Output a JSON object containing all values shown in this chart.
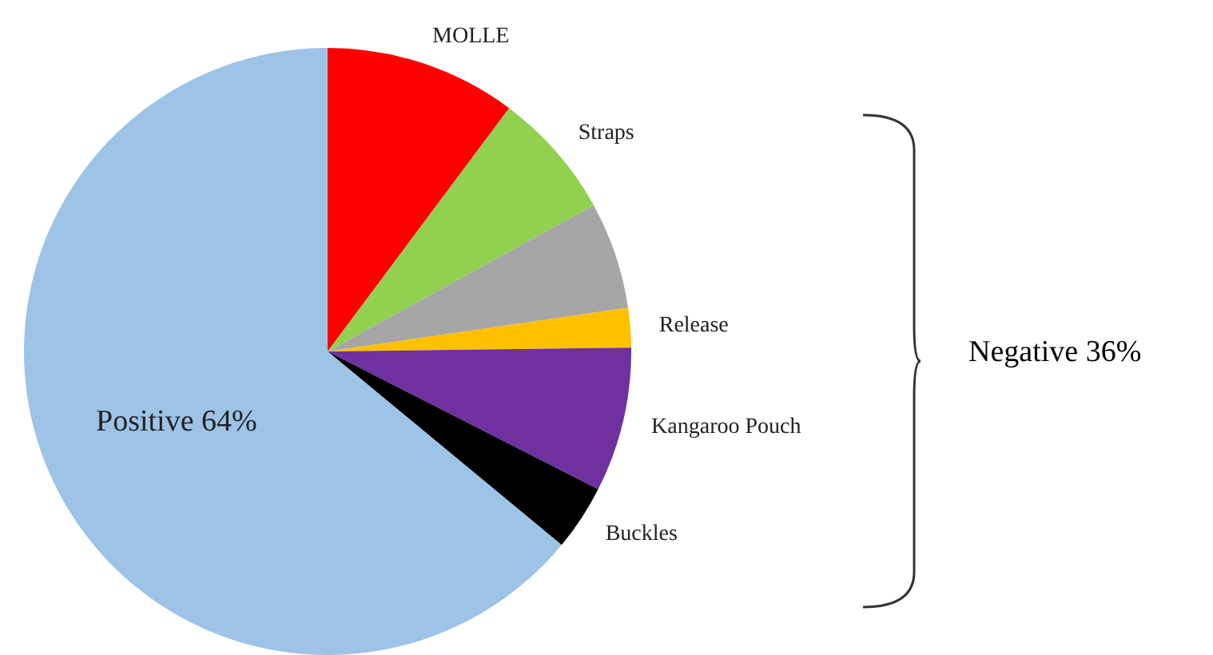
{
  "chart_data": {
    "type": "pie",
    "categories": [
      "MOLLE",
      "Straps",
      null,
      "Release",
      "Kangaroo Pouch",
      "Buckles",
      "Positive"
    ],
    "values": [
      10.2,
      6.8,
      5.7,
      2.1,
      7.7,
      3.5,
      64
    ],
    "value_labels": [
      null,
      null,
      null,
      null,
      null,
      null,
      "64%"
    ],
    "colors": [
      "#ff0000",
      "#92d050",
      "#a6a6a6",
      "#ffc000",
      "#7030a0",
      "#000000",
      "#9dc3e6"
    ],
    "annotations": [
      "Negative 36%"
    ],
    "legend": false
  }
}
